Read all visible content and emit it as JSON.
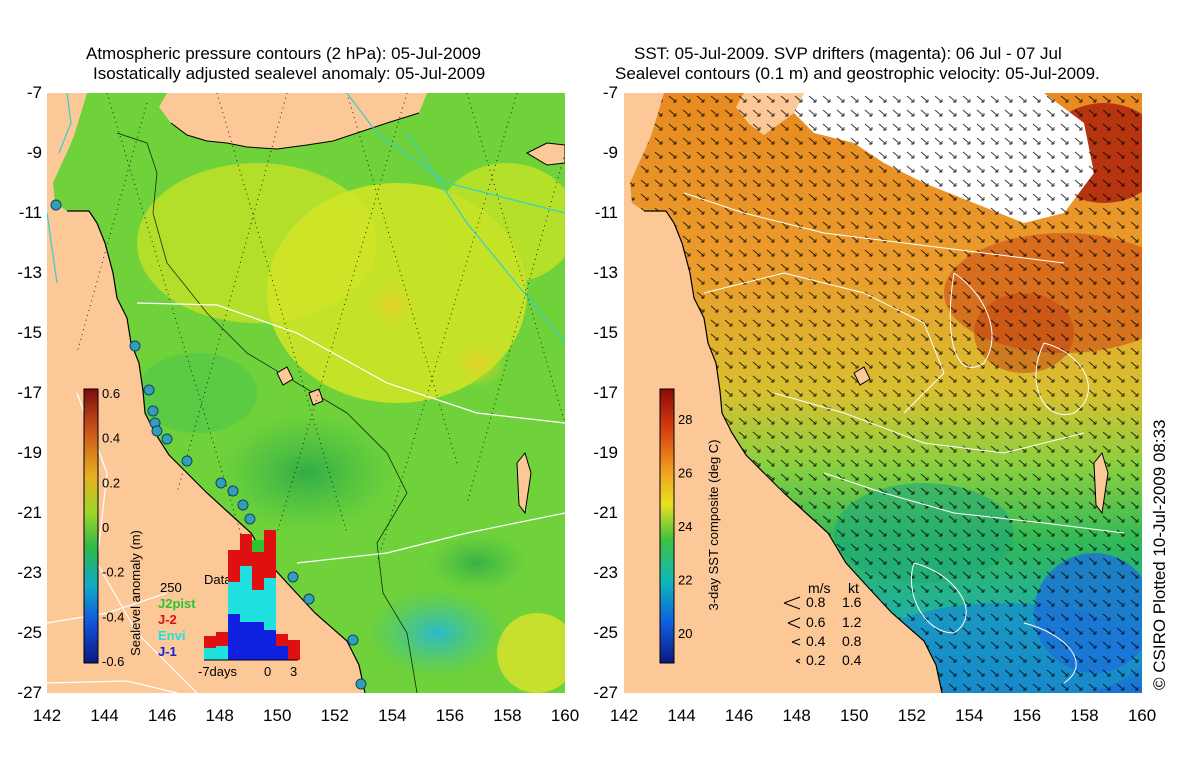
{
  "left_panel": {
    "title_line1": "Atmospheric pressure contours (2 hPa): 05-Jul-2009",
    "title_line2": "Isostatically adjusted sealevel anomaly: 05-Jul-2009",
    "colorbar": {
      "label": "Sealevel anomaly (m)",
      "ticks": [
        "0.6",
        "0.4",
        "0.2",
        "0",
        "-0.2",
        "-0.4",
        "-0.6"
      ],
      "colors": [
        "#7a0d0d",
        "#c8541a",
        "#e8b020",
        "#9ed62a",
        "#2fb84a",
        "#12a8c8",
        "#1250d8",
        "#0a1880"
      ]
    },
    "histogram": {
      "title": "Data count",
      "max_label": "250",
      "xlabel_left": "-7days",
      "xlabel_mid": "0",
      "xlabel_right": "3",
      "legend": [
        {
          "label": "J2pist",
          "color": "#2ec42e"
        },
        {
          "label": "J-2",
          "color": "#e01010"
        },
        {
          "label": "Envi",
          "color": "#20e0e0"
        },
        {
          "label": "J-1",
          "color": "#1020e0"
        }
      ]
    }
  },
  "right_panel": {
    "title_line1": "SST: 05-Jul-2009. SVP drifters (magenta): 06 Jul - 07 Jul",
    "title_line2": "Sealevel contours (0.1 m) and geostrophic velocity: 05-Jul-2009.",
    "colorbar": {
      "label": "3-day SST composite (deg C)",
      "ticks": [
        "28",
        "26",
        "24",
        "22",
        "20"
      ],
      "colors": [
        "#8a0a0a",
        "#d84010",
        "#f0a020",
        "#e8e020",
        "#40c040",
        "#10b8b8",
        "#1060e0",
        "#0a1880"
      ]
    },
    "velocity_legend": {
      "header_ms": "m/s",
      "header_kt": "kt",
      "rows": [
        {
          "ms": "0.8",
          "kt": "1.6"
        },
        {
          "ms": "0.6",
          "kt": "1.2"
        },
        {
          "ms": "0.4",
          "kt": "0.8"
        },
        {
          "ms": "0.2",
          "kt": "0.4"
        }
      ]
    }
  },
  "y_ticks": [
    "-7",
    "-9",
    "-11",
    "-13",
    "-15",
    "-17",
    "-19",
    "-21",
    "-23",
    "-25",
    "-27"
  ],
  "x_ticks": [
    "142",
    "144",
    "146",
    "148",
    "150",
    "152",
    "154",
    "156",
    "158",
    "160"
  ],
  "copyright": "© CSIRO Plotted 10-Jul-2009 08:33",
  "colors": {
    "land": "#fcc898",
    "ocean_left": "#66d63a",
    "ocean_right": "#e89a30",
    "contour": "#ffffff",
    "coast": "#000000"
  }
}
